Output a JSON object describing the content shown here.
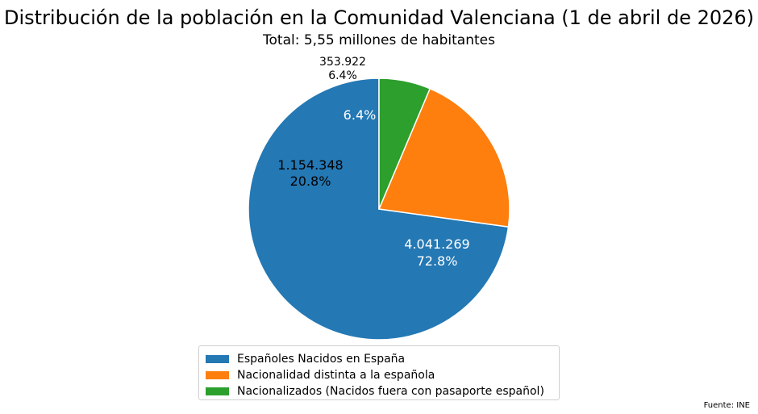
{
  "chart_data": {
    "type": "pie",
    "title": "Distribución de la población en la Comunidad Valenciana (1 de abril de 2026)",
    "subtitle": "Total: 5,55 millones de habitantes",
    "start_angle_deg": 90,
    "direction": "counterclockwise",
    "legend_position": "bottom-center",
    "slices": [
      {
        "name": "Españoles Nacidos en España",
        "value": 4041269,
        "value_label": "4.041.269",
        "percent": 72.8,
        "percent_label": "72.8%",
        "color": "#2478b4",
        "label_color": "#ffffff"
      },
      {
        "name": "Nacionalidad distinta a la española",
        "value": 1154348,
        "value_label": "1.154.348",
        "percent": 20.8,
        "percent_label": "20.8%",
        "color": "#fe7f0e",
        "label_color": "#000000"
      },
      {
        "name": "Nacionalizados (Nacidos fuera con pasaporte español)",
        "value": 353922,
        "value_label": "353.922",
        "percent": 6.4,
        "percent_label": "6.4%",
        "color": "#2c9f2c",
        "label_color": "#ffffff"
      }
    ],
    "source": "Fuente: INE"
  }
}
